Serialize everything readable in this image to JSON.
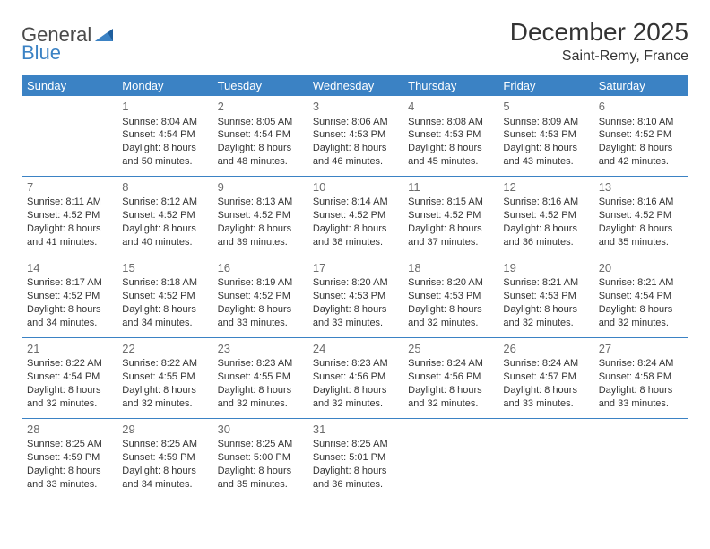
{
  "logo": {
    "part1": "General",
    "part2": "Blue"
  },
  "title": "December 2025",
  "location": "Saint-Remy, France",
  "colors": {
    "header_bg": "#3b82c4",
    "header_text": "#ffffff",
    "border": "#3b82c4",
    "daynum": "#6b6b6b",
    "text": "#333333",
    "background": "#ffffff"
  },
  "days_of_week": [
    "Sunday",
    "Monday",
    "Tuesday",
    "Wednesday",
    "Thursday",
    "Friday",
    "Saturday"
  ],
  "weeks": [
    [
      null,
      {
        "n": "1",
        "sr": "Sunrise: 8:04 AM",
        "ss": "Sunset: 4:54 PM",
        "d1": "Daylight: 8 hours",
        "d2": "and 50 minutes."
      },
      {
        "n": "2",
        "sr": "Sunrise: 8:05 AM",
        "ss": "Sunset: 4:54 PM",
        "d1": "Daylight: 8 hours",
        "d2": "and 48 minutes."
      },
      {
        "n": "3",
        "sr": "Sunrise: 8:06 AM",
        "ss": "Sunset: 4:53 PM",
        "d1": "Daylight: 8 hours",
        "d2": "and 46 minutes."
      },
      {
        "n": "4",
        "sr": "Sunrise: 8:08 AM",
        "ss": "Sunset: 4:53 PM",
        "d1": "Daylight: 8 hours",
        "d2": "and 45 minutes."
      },
      {
        "n": "5",
        "sr": "Sunrise: 8:09 AM",
        "ss": "Sunset: 4:53 PM",
        "d1": "Daylight: 8 hours",
        "d2": "and 43 minutes."
      },
      {
        "n": "6",
        "sr": "Sunrise: 8:10 AM",
        "ss": "Sunset: 4:52 PM",
        "d1": "Daylight: 8 hours",
        "d2": "and 42 minutes."
      }
    ],
    [
      {
        "n": "7",
        "sr": "Sunrise: 8:11 AM",
        "ss": "Sunset: 4:52 PM",
        "d1": "Daylight: 8 hours",
        "d2": "and 41 minutes."
      },
      {
        "n": "8",
        "sr": "Sunrise: 8:12 AM",
        "ss": "Sunset: 4:52 PM",
        "d1": "Daylight: 8 hours",
        "d2": "and 40 minutes."
      },
      {
        "n": "9",
        "sr": "Sunrise: 8:13 AM",
        "ss": "Sunset: 4:52 PM",
        "d1": "Daylight: 8 hours",
        "d2": "and 39 minutes."
      },
      {
        "n": "10",
        "sr": "Sunrise: 8:14 AM",
        "ss": "Sunset: 4:52 PM",
        "d1": "Daylight: 8 hours",
        "d2": "and 38 minutes."
      },
      {
        "n": "11",
        "sr": "Sunrise: 8:15 AM",
        "ss": "Sunset: 4:52 PM",
        "d1": "Daylight: 8 hours",
        "d2": "and 37 minutes."
      },
      {
        "n": "12",
        "sr": "Sunrise: 8:16 AM",
        "ss": "Sunset: 4:52 PM",
        "d1": "Daylight: 8 hours",
        "d2": "and 36 minutes."
      },
      {
        "n": "13",
        "sr": "Sunrise: 8:16 AM",
        "ss": "Sunset: 4:52 PM",
        "d1": "Daylight: 8 hours",
        "d2": "and 35 minutes."
      }
    ],
    [
      {
        "n": "14",
        "sr": "Sunrise: 8:17 AM",
        "ss": "Sunset: 4:52 PM",
        "d1": "Daylight: 8 hours",
        "d2": "and 34 minutes."
      },
      {
        "n": "15",
        "sr": "Sunrise: 8:18 AM",
        "ss": "Sunset: 4:52 PM",
        "d1": "Daylight: 8 hours",
        "d2": "and 34 minutes."
      },
      {
        "n": "16",
        "sr": "Sunrise: 8:19 AM",
        "ss": "Sunset: 4:52 PM",
        "d1": "Daylight: 8 hours",
        "d2": "and 33 minutes."
      },
      {
        "n": "17",
        "sr": "Sunrise: 8:20 AM",
        "ss": "Sunset: 4:53 PM",
        "d1": "Daylight: 8 hours",
        "d2": "and 33 minutes."
      },
      {
        "n": "18",
        "sr": "Sunrise: 8:20 AM",
        "ss": "Sunset: 4:53 PM",
        "d1": "Daylight: 8 hours",
        "d2": "and 32 minutes."
      },
      {
        "n": "19",
        "sr": "Sunrise: 8:21 AM",
        "ss": "Sunset: 4:53 PM",
        "d1": "Daylight: 8 hours",
        "d2": "and 32 minutes."
      },
      {
        "n": "20",
        "sr": "Sunrise: 8:21 AM",
        "ss": "Sunset: 4:54 PM",
        "d1": "Daylight: 8 hours",
        "d2": "and 32 minutes."
      }
    ],
    [
      {
        "n": "21",
        "sr": "Sunrise: 8:22 AM",
        "ss": "Sunset: 4:54 PM",
        "d1": "Daylight: 8 hours",
        "d2": "and 32 minutes."
      },
      {
        "n": "22",
        "sr": "Sunrise: 8:22 AM",
        "ss": "Sunset: 4:55 PM",
        "d1": "Daylight: 8 hours",
        "d2": "and 32 minutes."
      },
      {
        "n": "23",
        "sr": "Sunrise: 8:23 AM",
        "ss": "Sunset: 4:55 PM",
        "d1": "Daylight: 8 hours",
        "d2": "and 32 minutes."
      },
      {
        "n": "24",
        "sr": "Sunrise: 8:23 AM",
        "ss": "Sunset: 4:56 PM",
        "d1": "Daylight: 8 hours",
        "d2": "and 32 minutes."
      },
      {
        "n": "25",
        "sr": "Sunrise: 8:24 AM",
        "ss": "Sunset: 4:56 PM",
        "d1": "Daylight: 8 hours",
        "d2": "and 32 minutes."
      },
      {
        "n": "26",
        "sr": "Sunrise: 8:24 AM",
        "ss": "Sunset: 4:57 PM",
        "d1": "Daylight: 8 hours",
        "d2": "and 33 minutes."
      },
      {
        "n": "27",
        "sr": "Sunrise: 8:24 AM",
        "ss": "Sunset: 4:58 PM",
        "d1": "Daylight: 8 hours",
        "d2": "and 33 minutes."
      }
    ],
    [
      {
        "n": "28",
        "sr": "Sunrise: 8:25 AM",
        "ss": "Sunset: 4:59 PM",
        "d1": "Daylight: 8 hours",
        "d2": "and 33 minutes."
      },
      {
        "n": "29",
        "sr": "Sunrise: 8:25 AM",
        "ss": "Sunset: 4:59 PM",
        "d1": "Daylight: 8 hours",
        "d2": "and 34 minutes."
      },
      {
        "n": "30",
        "sr": "Sunrise: 8:25 AM",
        "ss": "Sunset: 5:00 PM",
        "d1": "Daylight: 8 hours",
        "d2": "and 35 minutes."
      },
      {
        "n": "31",
        "sr": "Sunrise: 8:25 AM",
        "ss": "Sunset: 5:01 PM",
        "d1": "Daylight: 8 hours",
        "d2": "and 36 minutes."
      },
      null,
      null,
      null
    ]
  ]
}
